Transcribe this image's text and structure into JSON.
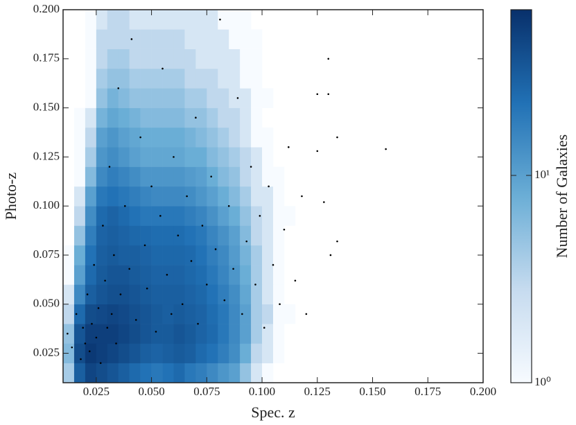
{
  "chart_data": {
    "type": "hist2d",
    "xlabel": "Spec. z",
    "ylabel": "Photo-z",
    "colorbar_label": "Number of Galaxies",
    "xlim": [
      0.01,
      0.2
    ],
    "ylim": [
      0.01,
      0.2
    ],
    "xticks": [
      0.025,
      {
        "value": 0.05,
        "label": "0.050"
      },
      0.075,
      {
        "value": 0.1,
        "label": "0.100"
      },
      0.125,
      {
        "value": 0.15,
        "label": "0.150"
      },
      0.175,
      {
        "value": 0.2,
        "label": "0.200"
      }
    ],
    "yticks": [
      0.025,
      {
        "value": 0.05,
        "label": "0.050"
      },
      0.075,
      {
        "value": 0.1,
        "label": "0.100"
      },
      0.125,
      {
        "value": 0.15,
        "label": "0.150"
      },
      0.175,
      {
        "value": 0.2,
        "label": "0.200"
      }
    ],
    "clim": [
      1,
      63
    ],
    "color_scale": "log",
    "cticks": [
      {
        "value": 1,
        "label": "10⁰"
      },
      {
        "value": 10,
        "label": "10¹"
      }
    ],
    "colormap": [
      "#f7fbff",
      "#c6dbef",
      "#6baed6",
      "#2171b5",
      "#08306b"
    ],
    "xbins": [
      0.01,
      0.015,
      0.02,
      0.025,
      0.03,
      0.035,
      0.04,
      0.045,
      0.05,
      0.055,
      0.06,
      0.065,
      0.07,
      0.075,
      0.08,
      0.085,
      0.09,
      0.095,
      0.1,
      0.105,
      0.11,
      0.115,
      0.12,
      0.125
    ],
    "ybins": [
      0.01,
      0.02,
      0.03,
      0.04,
      0.05,
      0.06,
      0.07,
      0.08,
      0.09,
      0.1,
      0.11,
      0.12,
      0.13,
      0.14,
      0.15,
      0.16,
      0.17,
      0.18,
      0.19,
      0.2
    ],
    "counts": [
      [
        4,
        30,
        45,
        40,
        35,
        30,
        25,
        22,
        20,
        22,
        25,
        20,
        18,
        15,
        12,
        10,
        5,
        2,
        1,
        0,
        0,
        0,
        0
      ],
      [
        6,
        40,
        55,
        50,
        45,
        40,
        35,
        30,
        28,
        30,
        32,
        30,
        25,
        22,
        18,
        14,
        8,
        3,
        2,
        1,
        0,
        0,
        0
      ],
      [
        5,
        35,
        50,
        50,
        50,
        45,
        40,
        35,
        32,
        32,
        35,
        32,
        28,
        25,
        20,
        15,
        10,
        4,
        2,
        1,
        0,
        0,
        0
      ],
      [
        3,
        25,
        40,
        42,
        45,
        42,
        38,
        35,
        32,
        30,
        32,
        30,
        28,
        24,
        20,
        15,
        10,
        4,
        3,
        1,
        1,
        0,
        0
      ],
      [
        2,
        15,
        30,
        35,
        38,
        38,
        35,
        32,
        30,
        30,
        30,
        28,
        26,
        22,
        18,
        14,
        9,
        4,
        2,
        1,
        0,
        0,
        0
      ],
      [
        1,
        10,
        25,
        32,
        35,
        35,
        32,
        30,
        28,
        28,
        28,
        26,
        24,
        20,
        16,
        12,
        8,
        4,
        2,
        1,
        0,
        0,
        0
      ],
      [
        1,
        8,
        22,
        30,
        32,
        30,
        30,
        28,
        26,
        26,
        26,
        25,
        22,
        18,
        15,
        11,
        7,
        4,
        2,
        1,
        0,
        0,
        0
      ],
      [
        0,
        5,
        18,
        28,
        30,
        28,
        26,
        25,
        24,
        24,
        24,
        22,
        20,
        16,
        13,
        10,
        6,
        3,
        2,
        1,
        0,
        0,
        0
      ],
      [
        0,
        3,
        14,
        25,
        28,
        25,
        22,
        20,
        20,
        20,
        20,
        18,
        16,
        13,
        10,
        8,
        5,
        3,
        2,
        1,
        1,
        0,
        0
      ],
      [
        0,
        2,
        10,
        20,
        22,
        20,
        18,
        16,
        15,
        15,
        15,
        14,
        12,
        10,
        8,
        6,
        4,
        2,
        2,
        1,
        0,
        0,
        0
      ],
      [
        0,
        1,
        6,
        15,
        18,
        16,
        14,
        12,
        12,
        12,
        12,
        11,
        10,
        8,
        6,
        5,
        3,
        2,
        1,
        1,
        0,
        0,
        0
      ],
      [
        0,
        1,
        4,
        12,
        14,
        12,
        10,
        9,
        9,
        9,
        9,
        8,
        8,
        6,
        5,
        4,
        3,
        2,
        1,
        0,
        0,
        0,
        0
      ],
      [
        0,
        1,
        3,
        10,
        12,
        10,
        9,
        8,
        8,
        8,
        8,
        7,
        6,
        5,
        4,
        3,
        2,
        1,
        1,
        0,
        0,
        0,
        0
      ],
      [
        0,
        1,
        2,
        7,
        9,
        8,
        7,
        6,
        6,
        6,
        6,
        5,
        5,
        4,
        3,
        3,
        2,
        1,
        0,
        0,
        0,
        0,
        0
      ],
      [
        0,
        0,
        1,
        5,
        7,
        6,
        5,
        5,
        5,
        5,
        5,
        4,
        4,
        3,
        3,
        2,
        2,
        1,
        1,
        0,
        0,
        0,
        0
      ],
      [
        0,
        0,
        1,
        4,
        5,
        5,
        4,
        4,
        4,
        4,
        4,
        3,
        3,
        3,
        2,
        2,
        1,
        1,
        0,
        0,
        0,
        0,
        0
      ],
      [
        0,
        0,
        1,
        3,
        4,
        4,
        3,
        3,
        3,
        3,
        3,
        3,
        2,
        2,
        2,
        2,
        1,
        1,
        0,
        0,
        0,
        0,
        0
      ],
      [
        0,
        0,
        1,
        3,
        3,
        3,
        3,
        3,
        3,
        3,
        3,
        2,
        2,
        2,
        2,
        1,
        1,
        1,
        0,
        0,
        0,
        0,
        0
      ],
      [
        0,
        0,
        1,
        2,
        3,
        3,
        2,
        2,
        2,
        2,
        2,
        2,
        2,
        2,
        1,
        1,
        1,
        0,
        0,
        0,
        0,
        0,
        0
      ]
    ],
    "points": {
      "color": "#000000",
      "x": [
        0.012,
        0.014,
        0.016,
        0.018,
        0.019,
        0.02,
        0.021,
        0.022,
        0.023,
        0.024,
        0.025,
        0.026,
        0.027,
        0.028,
        0.029,
        0.03,
        0.031,
        0.032,
        0.033,
        0.034,
        0.035,
        0.036,
        0.038,
        0.04,
        0.041,
        0.043,
        0.045,
        0.047,
        0.048,
        0.05,
        0.052,
        0.054,
        0.055,
        0.057,
        0.059,
        0.06,
        0.062,
        0.064,
        0.066,
        0.068,
        0.07,
        0.071,
        0.073,
        0.075,
        0.077,
        0.079,
        0.081,
        0.083,
        0.085,
        0.087,
        0.089,
        0.091,
        0.093,
        0.095,
        0.097,
        0.099,
        0.101,
        0.103,
        0.105,
        0.108,
        0.11,
        0.112,
        0.115,
        0.118,
        0.12,
        0.125,
        0.13,
        0.131,
        0.134,
        0.128,
        0.134,
        0.125,
        0.156,
        0.13
      ],
      "y": [
        0.035,
        0.028,
        0.045,
        0.022,
        0.038,
        0.03,
        0.055,
        0.026,
        0.04,
        0.07,
        0.033,
        0.048,
        0.02,
        0.09,
        0.062,
        0.038,
        0.12,
        0.045,
        0.075,
        0.03,
        0.16,
        0.055,
        0.1,
        0.068,
        0.185,
        0.042,
        0.135,
        0.08,
        0.058,
        0.11,
        0.036,
        0.095,
        0.17,
        0.065,
        0.045,
        0.125,
        0.085,
        0.05,
        0.105,
        0.072,
        0.145,
        0.04,
        0.09,
        0.06,
        0.115,
        0.078,
        0.195,
        0.052,
        0.1,
        0.068,
        0.155,
        0.045,
        0.082,
        0.12,
        0.06,
        0.095,
        0.038,
        0.11,
        0.07,
        0.05,
        0.088,
        0.13,
        0.062,
        0.105,
        0.045,
        0.157,
        0.157,
        0.075,
        0.082,
        0.102,
        0.135,
        0.128,
        0.129,
        0.175
      ]
    }
  }
}
